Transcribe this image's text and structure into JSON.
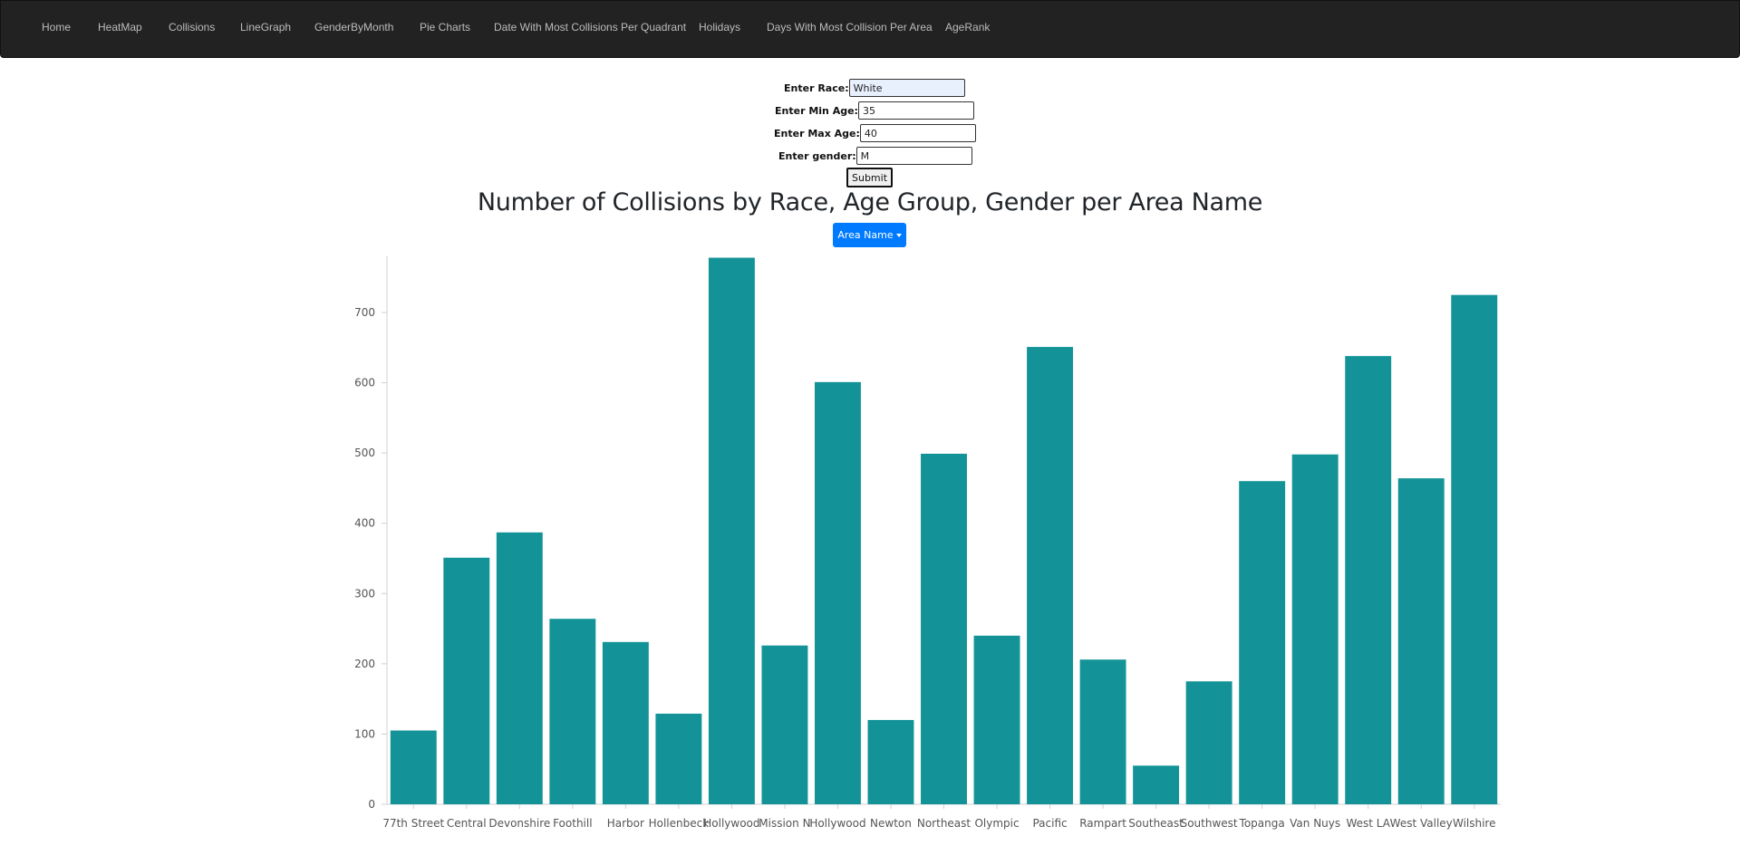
{
  "nav": {
    "items": [
      "Home",
      "HeatMap",
      "Collisions",
      "LineGraph",
      "GenderByMonth",
      "Pie Charts",
      "Date With Most Collisions Per Quadrant",
      "Holidays",
      "Days With Most Collision Per Area",
      "AgeRank"
    ]
  },
  "form": {
    "race_label": "Enter Race:",
    "race_value": "White",
    "min_age_label": "Enter Min Age:",
    "min_age_value": "35",
    "max_age_label": "Enter Max Age:",
    "max_age_value": "40",
    "gender_label": "Enter gender:",
    "gender_value": "M",
    "submit_label": "Submit"
  },
  "dropdown": {
    "label": "Area Name"
  },
  "colors": {
    "bar": "#139397",
    "navbar": "#222222",
    "accent": "#007bff"
  },
  "chart_data": {
    "type": "bar",
    "title": "Number of Collisions by Race, Age Group, Gender per Area Name",
    "xlabel": "",
    "ylabel": "",
    "categories": [
      "77th Street",
      "Central",
      "Devonshire",
      "Foothill",
      "Harbor",
      "Hollenbeck",
      "Hollywood",
      "Mission N",
      "Hollywood",
      "Newton",
      "Northeast",
      "Olympic",
      "Pacific",
      "Rampart",
      "Southeast",
      "Southwest",
      "Topanga",
      "Van Nuys",
      "West LA",
      "West Valley",
      "Wilshire"
    ],
    "values": [
      105,
      351,
      387,
      264,
      231,
      129,
      778,
      226,
      601,
      120,
      499,
      240,
      651,
      206,
      55,
      175,
      460,
      498,
      638,
      464,
      725
    ],
    "yticks": [
      0,
      100,
      200,
      300,
      400,
      500,
      600,
      700
    ],
    "ylim": [
      0,
      780
    ],
    "grid": false,
    "legend": "none"
  }
}
